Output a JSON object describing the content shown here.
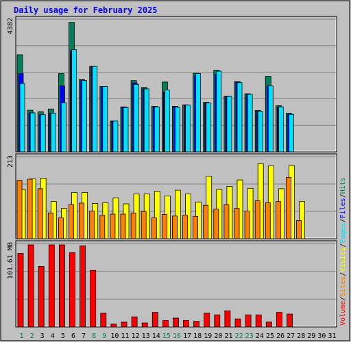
{
  "chart_data": {
    "type": "bar",
    "title": "Daily usage for February 2025",
    "colors": {
      "hits": "#00805c",
      "files": "#0000ff",
      "pages": "#00e0ff",
      "visits": "#ffff00",
      "sites": "#ff8000",
      "volume": "#ff0000",
      "title": "#0000ff",
      "weekend_label": "#00805c",
      "weekday_label": "#000000",
      "background": "#c0c0c0",
      "grid": "#808080"
    },
    "days": [
      "1",
      "2",
      "3",
      "4",
      "5",
      "6",
      "7",
      "8",
      "9",
      "10",
      "11",
      "12",
      "13",
      "14",
      "15",
      "16",
      "17",
      "18",
      "19",
      "20",
      "21",
      "22",
      "23",
      "24",
      "25",
      "26",
      "27",
      "28",
      "29",
      "30",
      "31"
    ],
    "weekend_days": [
      "1",
      "2",
      "8",
      "9",
      "15",
      "16",
      "22",
      "23"
    ],
    "legend": {
      "hits": "Hits",
      "files": "Files",
      "pages": "Pages",
      "visits": "Visits",
      "sites": "Sites",
      "volume": "Volume"
    },
    "legend_separator": "/",
    "panels": [
      {
        "name": "hits-files-pages",
        "max_label": "4382",
        "ymax": 4382,
        "series": [
          {
            "name": "Hits",
            "values": [
              3240,
              1390,
              1340,
              1430,
              2610,
              4320,
              2410,
              2850,
              2180,
              1030,
              1500,
              2380,
              2150,
              1520,
              2330,
              1520,
              1570,
              2620,
              1650,
              2730,
              1860,
              2340,
              1940,
              1380,
              2520,
              1540,
              1290,
              0,
              0,
              0,
              0
            ]
          },
          {
            "name": "Files",
            "values": [
              2610,
              1300,
              1240,
              1290,
              2200,
              3370,
              2380,
              2850,
              2180,
              1030,
              1500,
              2300,
              2100,
              1500,
              2000,
              1500,
              1560,
              2550,
              1630,
              2600,
              1850,
              2330,
              1900,
              1350,
              2200,
              1500,
              1250,
              0,
              0,
              0,
              0
            ]
          },
          {
            "name": "Pages",
            "values": [
              2280,
              1300,
              1240,
              1290,
              1640,
              3410,
              2380,
              2850,
              2180,
              1030,
              1480,
              2250,
              2100,
              1500,
              2060,
              1490,
              1560,
              2610,
              1630,
              2690,
              1850,
              2310,
              1920,
              1350,
              2200,
              1500,
              1250,
              0,
              0,
              0,
              0
            ]
          }
        ]
      },
      {
        "name": "visits-sites",
        "max_label": "213",
        "ymax": 213,
        "series": [
          {
            "name": "Visits",
            "values": [
              130,
              158,
              160,
              98,
              80,
              122,
              122,
              93,
              95,
              108,
              92,
              118,
              118,
              125,
              113,
              128,
              118,
              97,
              165,
              130,
              138,
              155,
              133,
              198,
              192,
              132,
              193,
              98,
              0,
              0,
              0
            ]
          },
          {
            "name": "Sites",
            "values": [
              154,
              157,
              132,
              68,
              55,
              90,
              94,
              73,
              62,
              65,
              65,
              68,
              72,
              55,
              64,
              60,
              62,
              59,
              88,
              78,
              90,
              80,
              73,
              100,
              95,
              98,
              162,
              48,
              0,
              0,
              0
            ]
          }
        ]
      },
      {
        "name": "volume",
        "max_label": "101.61 MB",
        "ymax": 101.61,
        "series": [
          {
            "name": "Volume",
            "values": [
              91,
              101.6,
              75,
              101.61,
              101.61,
              92,
              100.5,
              70,
              17,
              3.5,
              6,
              12.5,
              5,
              18,
              8,
              11,
              8,
              7,
              17,
              15,
              20,
              10,
              15,
              15,
              6,
              18,
              16,
              0,
              0,
              0,
              0
            ]
          }
        ]
      }
    ]
  }
}
